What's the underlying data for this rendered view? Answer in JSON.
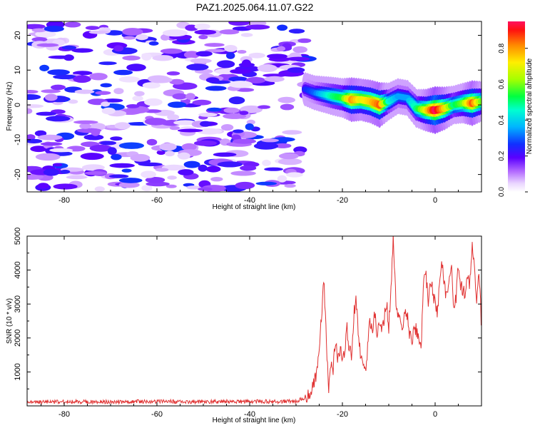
{
  "title": "PAZ1.2025.064.11.07.G22",
  "chart_data": [
    {
      "type": "heatmap",
      "xlabel": "Height of straight line (km)",
      "ylabel": "Frequency (Hz)",
      "xlim": [
        -88,
        10
      ],
      "ylim": [
        -25,
        24
      ],
      "xticks": [
        -80,
        -60,
        -40,
        -20,
        0
      ],
      "yticks": [
        -20,
        -10,
        0,
        10,
        20
      ],
      "colorbar": {
        "label": "Normalized spectral amplitude",
        "range": [
          0,
          0.95
        ],
        "ticks": [
          0,
          0.2,
          0.4,
          0.6,
          0.8
        ]
      },
      "noise_region": {
        "x_from": -88,
        "x_to": -28,
        "amplitude_range": [
          0.0,
          0.28
        ]
      },
      "ridge": {
        "x": [
          -28,
          -26,
          -24,
          -22,
          -20,
          -18,
          -16,
          -14,
          -12,
          -10,
          -8,
          -6,
          -4,
          -2,
          0,
          2,
          4,
          6,
          8,
          10
        ],
        "freq": [
          4.5,
          3.5,
          3,
          2.5,
          2,
          1.5,
          1.5,
          1,
          0,
          1,
          2.5,
          2,
          -1,
          -1.5,
          -1.5,
          -1,
          0,
          0.5,
          0.5,
          1
        ],
        "amplitude": [
          0.25,
          0.3,
          0.4,
          0.5,
          0.55,
          0.8,
          0.7,
          0.75,
          0.85,
          0.45,
          0.35,
          0.35,
          0.5,
          0.7,
          0.95,
          0.75,
          0.5,
          0.6,
          0.85,
          0.6
        ]
      }
    },
    {
      "type": "line",
      "xlabel": "Height of straight line (km)",
      "ylabel": "SNR (10 * v/v)",
      "xlim": [
        -88,
        10
      ],
      "ylim": [
        0,
        5000
      ],
      "xticks": [
        -80,
        -60,
        -40,
        -20,
        0
      ],
      "yticks": [
        1000,
        2000,
        3000,
        4000,
        5000
      ],
      "color": "#e03030",
      "series": [
        {
          "x": [
            -88,
            -30,
            -28,
            -27,
            -26,
            -25.5,
            -25,
            -24.5,
            -24,
            -23.5,
            -23,
            -22.5,
            -22,
            -21.5,
            -21,
            -20.5,
            -20,
            -19.5,
            -19,
            -18.5,
            -18,
            -17.5,
            -17,
            -16.5,
            -16,
            -15.5,
            -15,
            -14.5,
            -14,
            -13.5,
            -13,
            -12.5,
            -12,
            -11.5,
            -11,
            -10.5,
            -10,
            -9.5,
            -9,
            -8.5,
            -8,
            -7.5,
            -7,
            -6.5,
            -6,
            -5.5,
            -5,
            -4.5,
            -4,
            -3.5,
            -3,
            -2.5,
            -2,
            -1.5,
            -1,
            -0.5,
            0,
            0.5,
            1,
            1.5,
            2,
            2.5,
            3,
            3.5,
            4,
            4.5,
            5,
            5.5,
            6,
            6.5,
            7,
            7.5,
            8,
            8.5,
            9,
            9.5,
            10
          ],
          "y": [
            120,
            130,
            250,
            400,
            700,
            1100,
            1600,
            2600,
            3800,
            2000,
            500,
            1200,
            1000,
            2000,
            1400,
            1700,
            1300,
            1500,
            2300,
            1700,
            1400,
            2700,
            3100,
            2000,
            1500,
            1100,
            900,
            1900,
            2500,
            2200,
            2700,
            2100,
            2600,
            2100,
            2600,
            3100,
            2300,
            3600,
            5000,
            3200,
            2600,
            2400,
            2300,
            2900,
            2700,
            2100,
            1800,
            2300,
            2200,
            1900,
            1800,
            3500,
            4000,
            3000,
            3800,
            3400,
            3000,
            2700,
            3600,
            4200,
            3500,
            3200,
            3800,
            4100,
            3000,
            3100,
            4200,
            3500,
            3400,
            3200,
            3900,
            3600,
            4900,
            4100,
            3100,
            3900,
            2300
          ]
        }
      ]
    }
  ]
}
